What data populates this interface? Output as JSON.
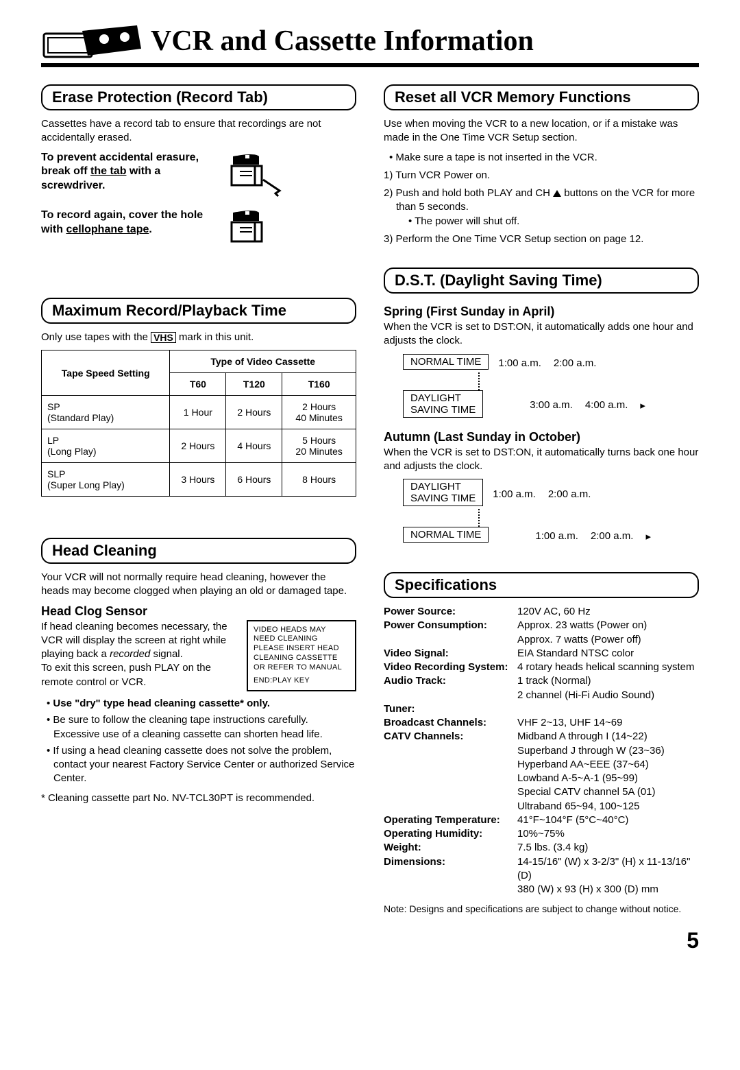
{
  "page": {
    "title": "VCR and Cassette Information",
    "number": "5"
  },
  "erase": {
    "heading": "Erase Protection (Record Tab)",
    "intro": "Cassettes have a record tab to ensure that recordings are not accidentally erased.",
    "prevent1": "To prevent accidental erasure, break off ",
    "prevent_u": "the tab",
    "prevent2": " with a screwdriver.",
    "record1": "To record again, cover the hole with ",
    "record_u": "cellophane tape",
    "record2": "."
  },
  "maxtime": {
    "heading": "Maximum Record/Playback Time",
    "intro1": "Only use tapes with the ",
    "intro2": " mark in this unit.",
    "vhs": "VHS",
    "th_setting": "Tape Speed Setting",
    "th_type": "Type of Video Cassette",
    "cols": [
      "T60",
      "T120",
      "T160"
    ],
    "rows": [
      {
        "label": "SP\n(Standard Play)",
        "c": [
          "1 Hour",
          "2 Hours",
          "2 Hours\n40 Minutes"
        ]
      },
      {
        "label": "LP\n(Long Play)",
        "c": [
          "2 Hours",
          "4 Hours",
          "5 Hours\n20 Minutes"
        ]
      },
      {
        "label": "SLP\n(Super Long Play)",
        "c": [
          "3 Hours",
          "6 Hours",
          "8 Hours"
        ]
      }
    ]
  },
  "headclean": {
    "heading": "Head Cleaning",
    "intro": "Your VCR will not normally require head cleaning, however the heads may become clogged when playing an old or damaged tape.",
    "sub": "Head Clog Sensor",
    "sensor1": "If head cleaning becomes necessary, the VCR will display the screen at right while playing back a ",
    "sensor_i": "recorded",
    "sensor2": " signal.",
    "sensor3": "To exit this screen, push PLAY on the remote control or VCR.",
    "box1": "VIDEO HEADS MAY NEED CLEANING PLEASE INSERT HEAD CLEANING CASSETTE OR REFER TO MANUAL",
    "box2": "END:PLAY KEY",
    "b1": "Use \"dry\" type head cleaning cassette* only.",
    "b2": "Be sure to follow the cleaning tape instructions carefully. Excessive use of a cleaning cassette can shorten head life.",
    "b3": "If using a head cleaning cassette does not solve the problem, contact your nearest Factory Service Center or authorized Service Center.",
    "note": "* Cleaning cassette part No. NV-TCL30PT is recommended."
  },
  "reset": {
    "heading": "Reset all VCR Memory Functions",
    "intro": "Use when moving the VCR to a new location, or if a mistake was made in the One Time VCR Setup section.",
    "b1": "Make sure a tape is not inserted in the VCR.",
    "s1": "1) Turn VCR Power on.",
    "s2a": "2) Push and hold both PLAY and CH ",
    "s2b": " buttons on the VCR for more than 5 seconds.",
    "s2sub": "• The power will shut off.",
    "s3": "3) Perform the One Time VCR Setup section on page 12."
  },
  "dst": {
    "heading": "D.S.T. (Daylight Saving Time)",
    "spring_h": "Spring (First Sunday in April)",
    "spring_t": "When the VCR is set to DST:ON, it automatically adds one hour and adjusts the clock.",
    "normal": "NORMAL TIME",
    "daylight": "DAYLIGHT\nSAVING TIME",
    "t12": "1:00 a.m.",
    "t2": "2:00 a.m.",
    "t3": "3:00 a.m.",
    "t4": "4:00 a.m.",
    "autumn_h": "Autumn (Last Sunday in October)",
    "autumn_t": "When the VCR is set to DST:ON, it automatically turns back one hour and adjusts the clock."
  },
  "specs": {
    "heading": "Specifications",
    "rows": [
      {
        "l": "Power Source:",
        "v": "120V AC, 60 Hz"
      },
      {
        "l": "Power Consumption:",
        "v": "Approx. 23 watts (Power on)\nApprox. 7 watts (Power off)"
      },
      {
        "l": "Video Signal:",
        "v": "EIA Standard NTSC color"
      },
      {
        "l": "Video Recording System:",
        "v": "4 rotary heads helical scanning system"
      },
      {
        "l": "Audio Track:",
        "v": "1 track (Normal)\n2 channel (Hi-Fi Audio Sound)"
      },
      {
        "l": "Tuner:",
        "v": ""
      },
      {
        "l": "Broadcast Channels:",
        "v": "VHF 2~13, UHF 14~69"
      },
      {
        "l": "CATV Channels:",
        "v": "Midband A through I (14~22)\nSuperband J through W (23~36)\nHyperband AA~EEE (37~64)\nLowband A-5~A-1 (95~99)\nSpecial CATV channel 5A (01)\nUltraband 65~94, 100~125"
      },
      {
        "l": "Operating Temperature:",
        "v": "41°F~104°F (5°C~40°C)"
      },
      {
        "l": "Operating Humidity:",
        "v": "10%~75%"
      },
      {
        "l": "Weight:",
        "v": "7.5 lbs. (3.4 kg)"
      },
      {
        "l": "Dimensions:",
        "v": "14-15/16\" (W) x 3-2/3\" (H) x 11-13/16\" (D)\n380 (W) x 93 (H) x 300 (D) mm"
      }
    ],
    "note": "Note: Designs and specifications are subject to change without notice."
  }
}
